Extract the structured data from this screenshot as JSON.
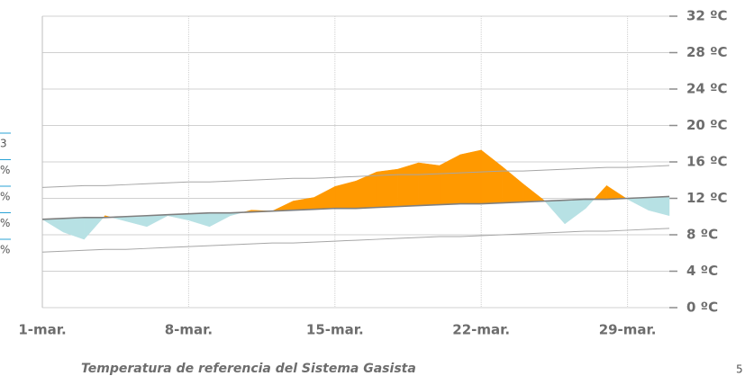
{
  "chart_data": {
    "type": "area",
    "title": "Temperatura de referencia del Sistema Gasista",
    "page_number": "5",
    "left_fragments": [
      "3",
      "%",
      "%",
      "%",
      "%"
    ],
    "categories": [
      "1-mar.",
      null,
      null,
      null,
      null,
      null,
      null,
      "8-mar.",
      null,
      null,
      null,
      null,
      null,
      null,
      "15-mar.",
      null,
      null,
      null,
      null,
      null,
      null,
      "22-mar.",
      null,
      null,
      null,
      null,
      null,
      null,
      "29-mar.",
      null,
      null
    ],
    "series": [
      {
        "color": "#ff9900",
        "below_color": "#b7e1e4",
        "values": [
          9.7,
          8.3,
          7.5,
          10.1,
          9.5,
          8.9,
          10.1,
          9.6,
          8.9,
          10.1,
          10.7,
          10.6,
          11.7,
          12.1,
          13.3,
          13.9,
          14.9,
          15.2,
          15.9,
          15.6,
          16.8,
          17.3,
          15.5,
          13.6,
          11.8,
          9.2,
          10.9,
          13.4,
          11.9,
          10.7,
          10.1
        ]
      },
      {
        "color": "#7f7f7f",
        "values": [
          9.7,
          9.8,
          9.9,
          9.9,
          10.0,
          10.1,
          10.2,
          10.3,
          10.4,
          10.4,
          10.5,
          10.6,
          10.7,
          10.8,
          10.9,
          10.9,
          11.0,
          11.1,
          11.2,
          11.3,
          11.4,
          11.4,
          11.5,
          11.6,
          11.7,
          11.8,
          11.9,
          11.9,
          12.0,
          12.1,
          12.2
        ]
      },
      {
        "color": "#a6a6a6",
        "values": [
          13.2,
          13.3,
          13.4,
          13.4,
          13.5,
          13.6,
          13.7,
          13.8,
          13.8,
          13.9,
          14.0,
          14.1,
          14.2,
          14.2,
          14.3,
          14.4,
          14.5,
          14.6,
          14.6,
          14.7,
          14.8,
          14.9,
          15.0,
          15.0,
          15.1,
          15.2,
          15.3,
          15.4,
          15.4,
          15.5,
          15.6
        ]
      },
      {
        "color": "#a6a6a6",
        "values": [
          6.1,
          6.2,
          6.3,
          6.4,
          6.4,
          6.5,
          6.6,
          6.7,
          6.8,
          6.9,
          7.0,
          7.1,
          7.1,
          7.2,
          7.3,
          7.4,
          7.5,
          7.6,
          7.7,
          7.8,
          7.8,
          7.9,
          8.0,
          8.1,
          8.2,
          8.3,
          8.4,
          8.4,
          8.5,
          8.6,
          8.7
        ]
      }
    ],
    "ylim": [
      0,
      32
    ],
    "yticks": [
      {
        "value": 0,
        "label": "0 ºC"
      },
      {
        "value": 4,
        "label": "4 ºC"
      },
      {
        "value": 8,
        "label": "8 ºC"
      },
      {
        "value": 12,
        "label": "12 ºC"
      },
      {
        "value": 16,
        "label": "16 ºC"
      },
      {
        "value": 20,
        "label": "20 ºC"
      },
      {
        "value": 24,
        "label": "24 ºC"
      },
      {
        "value": 28,
        "label": "28 ºC"
      },
      {
        "value": 32,
        "label": "32 ºC"
      }
    ],
    "grid": true
  }
}
